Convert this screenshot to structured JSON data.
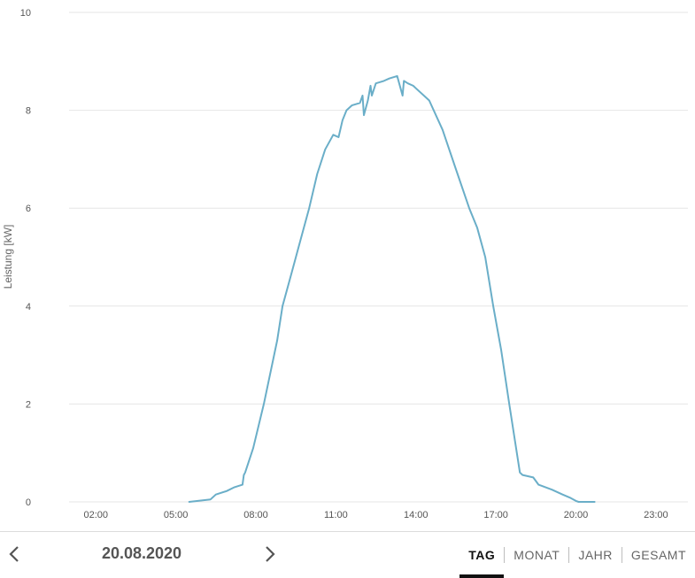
{
  "chart_data": {
    "type": "line",
    "ylabel": "Leistung [kW]",
    "ylim": [
      0,
      10
    ],
    "yticks": [
      0,
      2,
      4,
      6,
      8,
      10
    ],
    "xlim": [
      0,
      24.2
    ],
    "xticks": [
      {
        "value": 2,
        "label": "02:00"
      },
      {
        "value": 5,
        "label": "05:00"
      },
      {
        "value": 8,
        "label": "08:00"
      },
      {
        "value": 11,
        "label": "11:00"
      },
      {
        "value": 14,
        "label": "14:00"
      },
      {
        "value": 17,
        "label": "17:00"
      },
      {
        "value": 20,
        "label": "20:00"
      },
      {
        "value": 23,
        "label": "23:00"
      }
    ],
    "grid": true,
    "color": "#6aaec8",
    "series": [
      {
        "x": [
          5.5,
          6.3,
          6.5,
          6.9,
          7.2,
          7.5,
          7.55,
          7.6,
          7.9,
          8.3,
          8.8,
          9.0,
          9.3,
          9.6,
          9.8,
          10.0,
          10.3,
          10.6,
          10.9,
          11.1,
          11.25,
          11.4,
          11.6,
          11.9,
          12.0,
          12.05,
          12.2,
          12.3,
          12.35,
          12.5,
          12.8,
          13.0,
          13.3,
          13.5,
          13.55,
          13.7,
          13.9,
          14.0,
          14.5,
          15.0,
          15.5,
          16.0,
          16.3,
          16.6,
          16.9,
          17.2,
          17.5,
          17.9,
          18.0,
          18.4,
          18.6,
          19.1,
          19.5,
          19.8,
          20.0,
          20.1,
          20.3,
          20.7
        ],
        "y": [
          0.0,
          0.05,
          0.15,
          0.22,
          0.3,
          0.35,
          0.55,
          0.6,
          1.1,
          2.0,
          3.3,
          4.0,
          4.6,
          5.2,
          5.6,
          6.0,
          6.7,
          7.2,
          7.5,
          7.45,
          7.8,
          8.0,
          8.1,
          8.15,
          8.3,
          7.9,
          8.2,
          8.5,
          8.3,
          8.55,
          8.6,
          8.65,
          8.7,
          8.3,
          8.6,
          8.55,
          8.5,
          8.45,
          8.2,
          7.6,
          6.8,
          6.0,
          5.6,
          5.0,
          4.0,
          3.1,
          2.0,
          0.6,
          0.55,
          0.5,
          0.35,
          0.25,
          0.15,
          0.08,
          0.02,
          0.0,
          0.0,
          0.0
        ]
      }
    ]
  },
  "footer": {
    "date": "20.08.2020",
    "tabs": [
      {
        "label": "TAG",
        "active": true
      },
      {
        "label": "MONAT",
        "active": false
      },
      {
        "label": "JAHR",
        "active": false
      },
      {
        "label": "GESAMT",
        "active": false
      }
    ]
  }
}
